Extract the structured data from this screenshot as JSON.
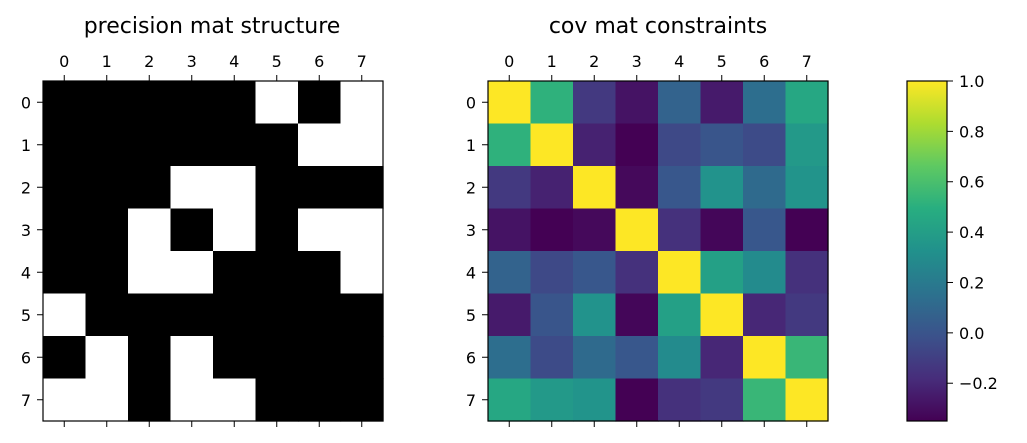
{
  "chart_data": [
    {
      "type": "heatmap",
      "title": "precision mat structure",
      "row_labels": [
        "0",
        "1",
        "2",
        "3",
        "4",
        "5",
        "6",
        "7"
      ],
      "col_labels": [
        "0",
        "1",
        "2",
        "3",
        "4",
        "5",
        "6",
        "7"
      ],
      "colormap": "binary",
      "values": [
        [
          1,
          1,
          1,
          1,
          1,
          0,
          1,
          0
        ],
        [
          1,
          1,
          1,
          1,
          1,
          1,
          0,
          0
        ],
        [
          1,
          1,
          1,
          0,
          0,
          1,
          1,
          1
        ],
        [
          1,
          1,
          0,
          1,
          0,
          1,
          0,
          0
        ],
        [
          1,
          1,
          0,
          0,
          1,
          1,
          1,
          0
        ],
        [
          0,
          1,
          1,
          1,
          1,
          1,
          1,
          1
        ],
        [
          1,
          0,
          1,
          0,
          1,
          1,
          1,
          1
        ],
        [
          0,
          0,
          1,
          0,
          0,
          1,
          1,
          1
        ]
      ]
    },
    {
      "type": "heatmap",
      "title": "cov mat constraints",
      "row_labels": [
        "0",
        "1",
        "2",
        "3",
        "4",
        "5",
        "6",
        "7"
      ],
      "col_labels": [
        "0",
        "1",
        "2",
        "3",
        "4",
        "5",
        "6",
        "7"
      ],
      "colormap": "viridis",
      "vmin": -0.35,
      "vmax": 1.0,
      "values": [
        [
          1.0,
          0.52,
          -0.12,
          -0.28,
          0.08,
          -0.25,
          0.14,
          0.46
        ],
        [
          0.52,
          1.0,
          -0.22,
          -0.36,
          -0.05,
          0.01,
          -0.04,
          0.38
        ],
        [
          -0.12,
          -0.22,
          1.0,
          -0.32,
          0.02,
          0.34,
          0.12,
          0.35
        ],
        [
          -0.28,
          -0.36,
          -0.32,
          1.0,
          -0.16,
          -0.33,
          0.02,
          -0.35
        ],
        [
          0.08,
          -0.05,
          0.02,
          -0.16,
          1.0,
          0.42,
          0.3,
          -0.16
        ],
        [
          -0.25,
          0.01,
          0.34,
          -0.33,
          0.42,
          1.0,
          -0.2,
          -0.12
        ],
        [
          0.14,
          -0.04,
          0.12,
          0.02,
          0.3,
          -0.2,
          1.0,
          0.55
        ],
        [
          0.46,
          0.38,
          0.35,
          -0.35,
          -0.16,
          -0.12,
          0.55,
          1.0
        ]
      ]
    }
  ],
  "colorbar": {
    "colormap": "viridis",
    "vmin": -0.35,
    "vmax": 1.0,
    "tick_values": [
      -0.2,
      0.0,
      0.2,
      0.4,
      0.6,
      0.8,
      1.0
    ],
    "tick_labels": [
      "−0.2",
      "0.0",
      "0.2",
      "0.4",
      "0.6",
      "0.8",
      "1.0"
    ]
  }
}
